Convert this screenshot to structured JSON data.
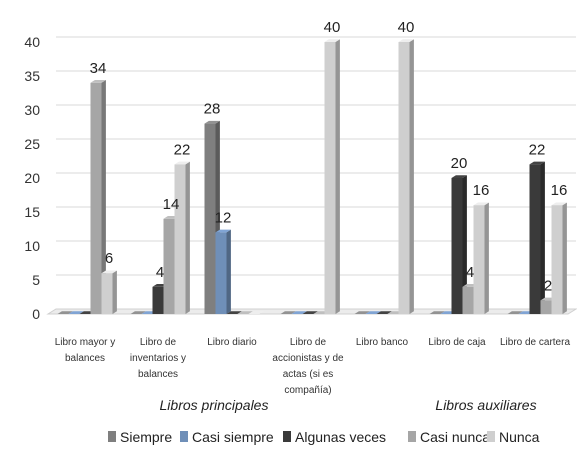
{
  "chart_data": {
    "type": "bar",
    "categories": [
      [
        "Libro mayor y",
        "balances"
      ],
      [
        "Libro de",
        "inventarios y",
        "balances"
      ],
      [
        "Libro diario"
      ],
      [
        "Libro de",
        "accionistas y de",
        "actas (si es",
        "compañía)"
      ],
      [
        "Libro banco"
      ],
      [
        "Libro de caja"
      ],
      [
        "Libro de cartera"
      ]
    ],
    "series": [
      {
        "name": "Siempre",
        "values": [
          0,
          0,
          28,
          0,
          0,
          0,
          0
        ],
        "color": "#7f7f7f"
      },
      {
        "name": "Casi siempre",
        "values": [
          0,
          0,
          12,
          0,
          0,
          0,
          0
        ],
        "color": "#6f8fb8"
      },
      {
        "name": "Algunas veces",
        "values": [
          0,
          4,
          0,
          0,
          0,
          20,
          22
        ],
        "color": "#3a3a3a"
      },
      {
        "name": "Casi nunca",
        "values": [
          34,
          14,
          0,
          0,
          0,
          4,
          2
        ],
        "color": "#a6a6a6"
      },
      {
        "name": "Nunca",
        "values": [
          6,
          22,
          0,
          40,
          40,
          16,
          16
        ],
        "color": "#cfcfcf"
      }
    ],
    "data_labels": [
      {
        "category": 0,
        "series": 3,
        "text": "34"
      },
      {
        "category": 0,
        "series": 4,
        "text": "6"
      },
      {
        "category": 1,
        "series": 2,
        "text": "4"
      },
      {
        "category": 1,
        "series": 3,
        "text": "14"
      },
      {
        "category": 1,
        "series": 4,
        "text": "22"
      },
      {
        "category": 2,
        "series": 0,
        "text": "28"
      },
      {
        "category": 2,
        "series": 1,
        "text": "12"
      },
      {
        "category": 3,
        "series": 4,
        "text": "40"
      },
      {
        "category": 4,
        "series": 4,
        "text": "40"
      },
      {
        "category": 5,
        "series": 2,
        "text": "20"
      },
      {
        "category": 5,
        "series": 3,
        "text": "4"
      },
      {
        "category": 5,
        "series": 4,
        "text": "16"
      },
      {
        "category": 6,
        "series": 2,
        "text": "22"
      },
      {
        "category": 6,
        "series": 3,
        "text": "2"
      },
      {
        "category": 6,
        "series": 4,
        "text": "16"
      }
    ],
    "group_labels": [
      "Libros principales",
      "Libros auxiliares"
    ],
    "yticks": [
      0,
      5,
      10,
      15,
      20,
      25,
      30,
      35,
      40
    ],
    "ylim": [
      0,
      40
    ],
    "grid": true,
    "legend_position": "bottom"
  }
}
